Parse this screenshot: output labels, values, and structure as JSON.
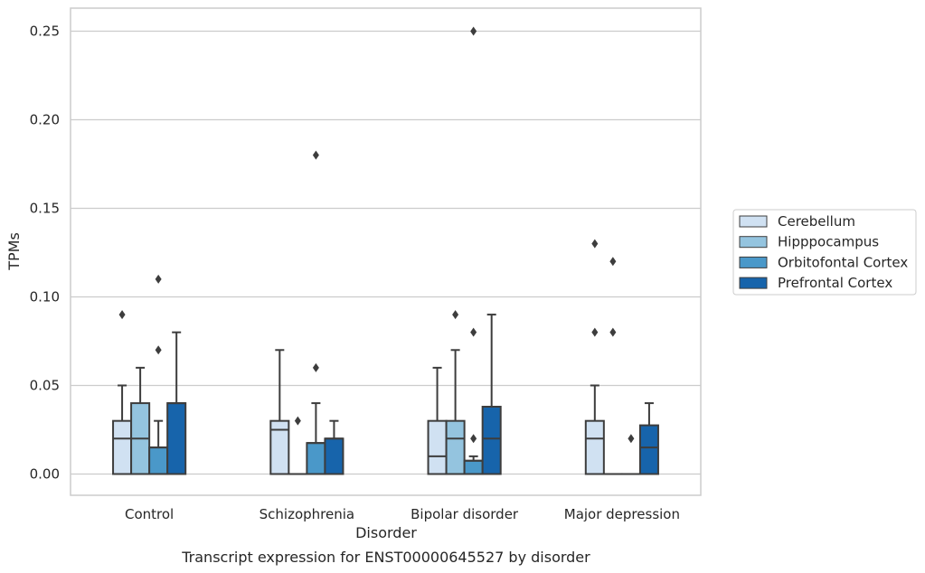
{
  "chart_data": {
    "type": "box",
    "xlabel": "Disorder",
    "ylabel": "TPMs",
    "caption": "Transcript expression for ENST00000645527 by disorder",
    "categories": [
      "Control",
      "Schizophrenia",
      "Bipolar disorder",
      "Major depression"
    ],
    "ylim": [
      -0.012,
      0.263
    ],
    "yticks": [
      "0.00",
      "0.05",
      "0.10",
      "0.15",
      "0.20",
      "0.25"
    ],
    "grid": "horizontal",
    "legend_position": "right",
    "series": [
      {
        "name": "Cerebellum",
        "color": "#d0e1f2",
        "boxes": [
          {
            "q1": 0.0,
            "median": 0.02,
            "q3": 0.03,
            "whisker_low": 0.0,
            "whisker_high": 0.05,
            "outliers": [
              0.09
            ]
          },
          {
            "q1": 0.0,
            "median": 0.025,
            "q3": 0.03,
            "whisker_low": 0.0,
            "whisker_high": 0.07,
            "outliers": []
          },
          {
            "q1": 0.0,
            "median": 0.01,
            "q3": 0.03,
            "whisker_low": 0.0,
            "whisker_high": 0.06,
            "outliers": []
          },
          {
            "q1": 0.0,
            "median": 0.02,
            "q3": 0.03,
            "whisker_low": 0.0,
            "whisker_high": 0.05,
            "outliers": [
              0.08,
              0.13
            ]
          }
        ]
      },
      {
        "name": "Hipppocampus",
        "color": "#94c4df",
        "boxes": [
          {
            "q1": 0.0,
            "median": 0.02,
            "q3": 0.04,
            "whisker_low": 0.0,
            "whisker_high": 0.06,
            "outliers": []
          },
          {
            "q1": 0.0,
            "median": 0.0,
            "q3": 0.0,
            "whisker_low": 0.0,
            "whisker_high": 0.0,
            "outliers": [
              0.03
            ]
          },
          {
            "q1": 0.0,
            "median": 0.02,
            "q3": 0.03,
            "whisker_low": 0.0,
            "whisker_high": 0.07,
            "outliers": [
              0.09
            ]
          },
          {
            "q1": 0.0,
            "median": 0.0,
            "q3": 0.0,
            "whisker_low": 0.0,
            "whisker_high": 0.0,
            "outliers": [
              0.08,
              0.12
            ]
          }
        ]
      },
      {
        "name": "Orbitofontal Cortex",
        "color": "#4a98c9",
        "boxes": [
          {
            "q1": 0.0,
            "median": 0.015,
            "q3": 0.015,
            "whisker_low": 0.0,
            "whisker_high": 0.03,
            "outliers": [
              0.07,
              0.11
            ]
          },
          {
            "q1": 0.0,
            "median": 0.0175,
            "q3": 0.0175,
            "whisker_low": 0.0,
            "whisker_high": 0.04,
            "outliers": [
              0.06,
              0.18
            ]
          },
          {
            "q1": 0.0,
            "median": 0.0075,
            "q3": 0.0075,
            "whisker_low": 0.0,
            "whisker_high": 0.01,
            "outliers": [
              0.02,
              0.08,
              0.25
            ]
          },
          {
            "q1": 0.0,
            "median": 0.0,
            "q3": 0.0,
            "whisker_low": 0.0,
            "whisker_high": 0.0,
            "outliers": [
              0.02
            ]
          }
        ]
      },
      {
        "name": "Prefrontal Cortex",
        "color": "#1764ab",
        "boxes": [
          {
            "q1": 0.0,
            "median": 0.04,
            "q3": 0.04,
            "whisker_low": 0.0,
            "whisker_high": 0.08,
            "outliers": []
          },
          {
            "q1": 0.0,
            "median": 0.02,
            "q3": 0.02,
            "whisker_low": 0.0,
            "whisker_high": 0.03,
            "outliers": []
          },
          {
            "q1": 0.0,
            "median": 0.02,
            "q3": 0.038,
            "whisker_low": 0.0,
            "whisker_high": 0.09,
            "outliers": []
          },
          {
            "q1": 0.0,
            "median": 0.015,
            "q3": 0.0275,
            "whisker_low": 0.0,
            "whisker_high": 0.04,
            "outliers": []
          }
        ]
      }
    ]
  }
}
